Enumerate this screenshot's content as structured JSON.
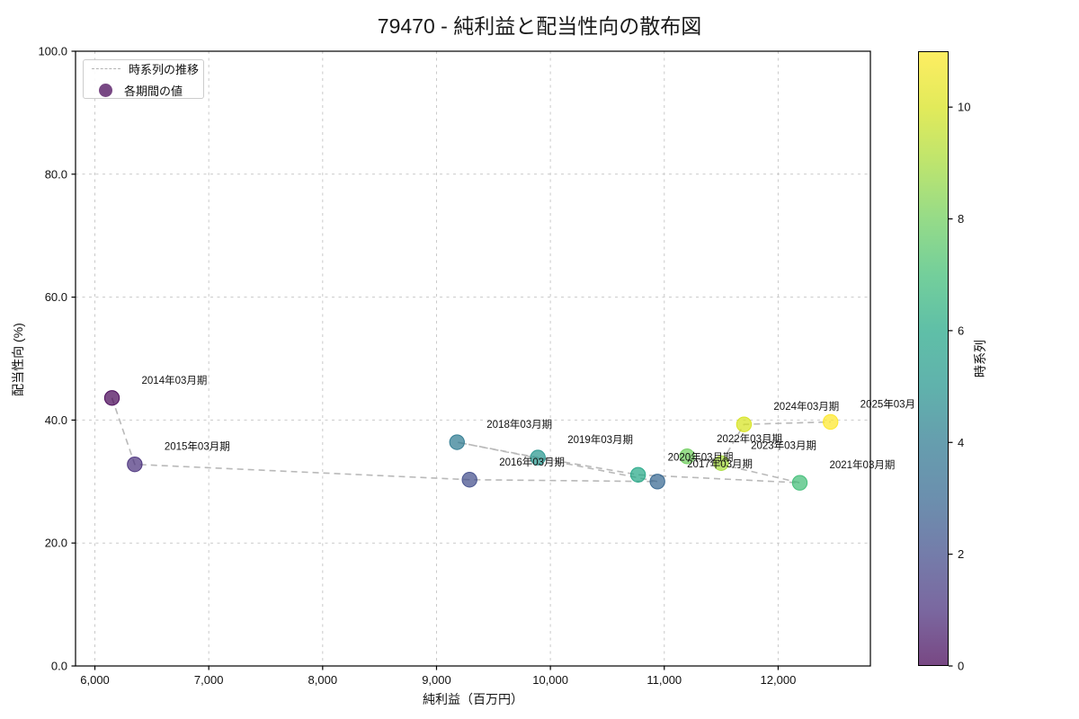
{
  "chart_data": {
    "type": "scatter",
    "title": "79470 - 純利益と配当性向の散布図",
    "xlabel": "純利益（百万円）",
    "ylabel": "配当性向 (%)",
    "grid": true,
    "legend": {
      "line_label": "時系列の推移",
      "marker_label": "各期間の値",
      "marker_color": "#440154"
    },
    "xlim": [
      5830,
      12810
    ],
    "ylim": [
      0,
      100
    ],
    "x_ticks": [
      {
        "v": 6000,
        "label": "6,000"
      },
      {
        "v": 7000,
        "label": "7,000"
      },
      {
        "v": 8000,
        "label": "8,000"
      },
      {
        "v": 9000,
        "label": "9,000"
      },
      {
        "v": 10000,
        "label": "10,000"
      },
      {
        "v": 11000,
        "label": "11,000"
      },
      {
        "v": 12000,
        "label": "12,000"
      }
    ],
    "y_ticks": [
      {
        "v": 0,
        "label": "0.0"
      },
      {
        "v": 20,
        "label": "20.0"
      },
      {
        "v": 40,
        "label": "40.0"
      },
      {
        "v": 60,
        "label": "60.0"
      },
      {
        "v": 80,
        "label": "80.0"
      },
      {
        "v": 100,
        "label": "100.0"
      }
    ],
    "colorbar": {
      "label": "時系列",
      "min": 0,
      "max": 11,
      "ticks": [
        0,
        2,
        4,
        6,
        8,
        10
      ]
    },
    "point_alpha": 0.7,
    "line_color": "#b9b9b9",
    "points": [
      {
        "label": "2014年03月期",
        "x": 6150,
        "y": 43.6,
        "t": 0,
        "color": "#440154"
      },
      {
        "label": "2015年03月期",
        "x": 6350,
        "y": 32.8,
        "t": 1,
        "color": "#472d7b"
      },
      {
        "label": "2016年03月期",
        "x": 9290,
        "y": 30.3,
        "t": 2,
        "color": "#3e4a89"
      },
      {
        "label": "2017年03月期",
        "x": 10940,
        "y": 30.0,
        "t": 3,
        "color": "#32648e"
      },
      {
        "label": "2018年03月期",
        "x": 9180,
        "y": 36.4,
        "t": 4,
        "color": "#2a788e"
      },
      {
        "label": "2019年03月期",
        "x": 9890,
        "y": 33.9,
        "t": 5,
        "color": "#22948c"
      },
      {
        "label": "2020年03月期",
        "x": 10770,
        "y": 31.1,
        "t": 6,
        "color": "#21a685"
      },
      {
        "label": "2021年03月期",
        "x": 12190,
        "y": 29.8,
        "t": 7,
        "color": "#3dbc74"
      },
      {
        "label": "2022年03月期",
        "x": 11200,
        "y": 34.1,
        "t": 8,
        "color": "#6ccd5a"
      },
      {
        "label": "2023年03月期",
        "x": 11500,
        "y": 33.0,
        "t": 9,
        "color": "#a3da36"
      },
      {
        "label": "2024年03月期",
        "x": 11700,
        "y": 39.3,
        "t": 10,
        "color": "#d6e21a"
      },
      {
        "label": "2025年03月",
        "x": 12460,
        "y": 39.7,
        "t": 11,
        "color": "#fde725"
      }
    ]
  }
}
